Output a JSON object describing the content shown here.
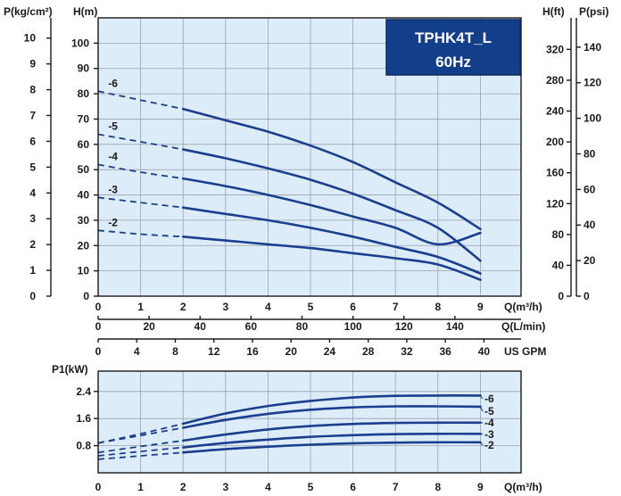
{
  "chart_data": [
    {
      "type": "line",
      "title_lines": [
        "TPHK4T_L",
        "60Hz"
      ],
      "x_unit": "Q(m³/h)",
      "x": [
        0,
        1,
        2,
        3,
        4,
        5,
        6,
        7,
        8,
        9
      ],
      "xlim": [
        0,
        9.9
      ],
      "y_unit": "H(m)",
      "ylim": [
        0,
        110
      ],
      "left_axis": {
        "unit": "P(kg/cm²)",
        "ticks": [
          0,
          1,
          2,
          3,
          4,
          5,
          6,
          7,
          8,
          9,
          10
        ]
      },
      "right_axis_ft": {
        "unit": "H(ft)",
        "ticks": [
          0,
          40,
          80,
          120,
          160,
          200,
          240,
          280,
          320
        ]
      },
      "right_axis_psi": {
        "unit": "P(psi)",
        "ticks": [
          0,
          20,
          40,
          60,
          80,
          100,
          120,
          140
        ]
      },
      "flow_axis_lmin": {
        "unit": "Q(L/min)",
        "ticks": [
          0,
          20,
          40,
          60,
          80,
          100,
          120,
          140
        ]
      },
      "flow_axis_gpm": {
        "unit": "US GPM",
        "ticks": [
          0,
          4,
          8,
          12,
          16,
          20,
          24,
          28,
          32,
          36,
          40
        ]
      },
      "grid": true,
      "series": [
        {
          "name": "-6",
          "x": [
            0,
            1,
            2,
            3,
            4,
            5,
            6,
            7,
            8,
            9
          ],
          "values": [
            81,
            77.5,
            74,
            69.5,
            65,
            59.5,
            53,
            45,
            37,
            26.5
          ]
        },
        {
          "name": "-5",
          "x": [
            0,
            1,
            2,
            3,
            4,
            5,
            6,
            7,
            8,
            9
          ],
          "values": [
            64,
            61,
            58,
            54.5,
            50.5,
            46,
            40.5,
            34,
            27,
            14
          ]
        },
        {
          "name": "-4",
          "x": [
            0,
            1,
            2,
            3,
            4,
            5,
            6,
            7,
            8,
            9
          ],
          "values": [
            52,
            49,
            46.5,
            43.5,
            40,
            36,
            31.5,
            27,
            20.5,
            25
          ]
        },
        {
          "name": "-3",
          "x": [
            0,
            1,
            2,
            3,
            4,
            5,
            6,
            7,
            8,
            9
          ],
          "values": [
            39,
            37,
            35,
            32.5,
            30,
            27,
            23.5,
            19.5,
            15.5,
            9
          ]
        },
        {
          "name": "-2",
          "x": [
            0,
            1,
            2,
            3,
            4,
            5,
            6,
            7,
            8,
            9
          ],
          "values": [
            26,
            24.5,
            23.5,
            22,
            20.5,
            19,
            17,
            15,
            12.5,
            6.5
          ]
        }
      ]
    },
    {
      "type": "line",
      "x_unit": "Q(m³/h)",
      "x": [
        0,
        1,
        2,
        3,
        4,
        5,
        6,
        7,
        8,
        9
      ],
      "xlim": [
        0,
        9.9
      ],
      "y_unit": "P1(kW)",
      "yticks": [
        "0.8",
        "1.6",
        "2.4"
      ],
      "ylim": [
        0,
        3.0
      ],
      "grid": true,
      "series": [
        {
          "name": "-6",
          "x": [
            0,
            1,
            2,
            3,
            4,
            5,
            6,
            7,
            8,
            9
          ],
          "values": [
            0.88,
            1.15,
            1.45,
            1.75,
            1.97,
            2.12,
            2.22,
            2.27,
            2.28,
            2.28
          ]
        },
        {
          "name": "-5",
          "x": [
            0,
            1,
            2,
            3,
            4,
            5,
            6,
            7,
            8,
            9
          ],
          "values": [
            0.88,
            1.1,
            1.33,
            1.56,
            1.74,
            1.86,
            1.93,
            1.96,
            1.96,
            1.95
          ]
        },
        {
          "name": "-4",
          "x": [
            0,
            1,
            2,
            3,
            4,
            5,
            6,
            7,
            8,
            9
          ],
          "values": [
            0.6,
            0.78,
            0.95,
            1.13,
            1.28,
            1.38,
            1.44,
            1.47,
            1.48,
            1.48
          ]
        },
        {
          "name": "-3",
          "x": [
            0,
            1,
            2,
            3,
            4,
            5,
            6,
            7,
            8,
            9
          ],
          "values": [
            0.5,
            0.63,
            0.75,
            0.88,
            0.98,
            1.06,
            1.11,
            1.14,
            1.15,
            1.15
          ]
        },
        {
          "name": "-2",
          "x": [
            0,
            1,
            2,
            3,
            4,
            5,
            6,
            7,
            8,
            9
          ],
          "values": [
            0.4,
            0.5,
            0.6,
            0.7,
            0.77,
            0.83,
            0.87,
            0.89,
            0.9,
            0.9
          ]
        }
      ]
    }
  ],
  "colors": {
    "curve": "#1b3f8e",
    "plot_bg": "#dcecf8",
    "title_bg": "#133f8a",
    "grid": "#9aa3ad",
    "axis": "#1a1a1a"
  }
}
